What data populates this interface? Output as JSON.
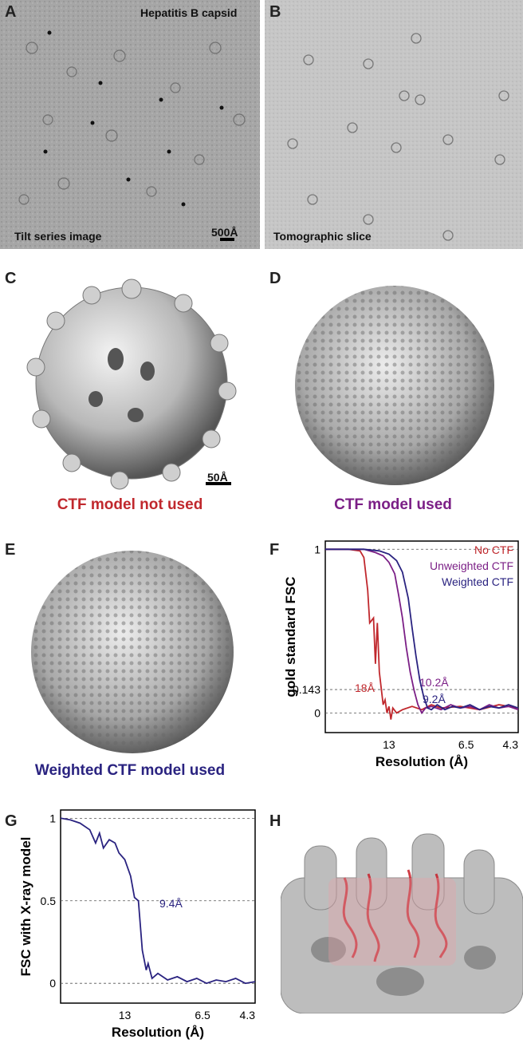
{
  "panels": {
    "A": {
      "label": "A",
      "title": "Hepatitis B capsid",
      "caption": "Tilt series image",
      "scalebar": "500Å"
    },
    "B": {
      "label": "B",
      "caption": "Tomographic slice"
    },
    "C": {
      "label": "C",
      "caption": "CTF model not used",
      "scalebar": "50Å",
      "caption_color": "#c0282d"
    },
    "D": {
      "label": "D",
      "caption": "CTF model used",
      "caption_color": "#7b1f86"
    },
    "E": {
      "label": "E",
      "caption": "Weighted CTF model used",
      "caption_color": "#2a2380"
    },
    "F": {
      "label": "F"
    },
    "G": {
      "label": "G"
    },
    "H": {
      "label": "H"
    }
  },
  "chart_data": [
    {
      "type": "line",
      "panel": "F",
      "ylabel": "gold standard FSC",
      "xlabel": "Resolution (Å)",
      "x_ticks": [
        "13",
        "6.5",
        "4.3"
      ],
      "y_ticks": [
        "1",
        "0.143",
        "0"
      ],
      "grid": "dashed horizontal at 1, 0.143, 0",
      "legend_position": "top-right",
      "series": [
        {
          "name": "No CTF",
          "color": "#c0282d",
          "annotation": "18Å",
          "x": [
            0,
            0.05,
            0.12,
            0.18,
            0.2,
            0.22,
            0.23,
            0.25,
            0.26,
            0.27,
            0.28,
            0.29,
            0.3,
            0.31,
            0.32,
            0.33,
            0.34,
            0.35,
            0.37,
            0.4,
            0.45,
            0.5,
            0.55,
            0.6,
            0.7,
            0.8,
            0.9,
            1.0
          ],
          "y": [
            1,
            1,
            1,
            0.99,
            0.95,
            0.75,
            0.55,
            0.58,
            0.3,
            0.55,
            0.25,
            0.15,
            0.05,
            0.08,
            0.0,
            0.04,
            -0.04,
            0.03,
            0.0,
            0.02,
            0.04,
            0.02,
            0.05,
            0.03,
            0.04,
            0.02,
            0.05,
            0.03
          ]
        },
        {
          "name": "Unweighted CTF",
          "color": "#7b1f86",
          "annotation": "10.2Å",
          "x": [
            0,
            0.1,
            0.2,
            0.26,
            0.3,
            0.33,
            0.36,
            0.38,
            0.4,
            0.42,
            0.44,
            0.46,
            0.48,
            0.5,
            0.52,
            0.55,
            0.6,
            0.65,
            0.7,
            0.75,
            0.8,
            0.85,
            0.9,
            0.95,
            1.0
          ],
          "y": [
            1,
            1,
            1,
            0.98,
            0.96,
            0.92,
            0.85,
            0.72,
            0.58,
            0.4,
            0.25,
            0.14,
            0.05,
            0.0,
            0.03,
            0.04,
            0.02,
            0.05,
            0.03,
            0.04,
            0.02,
            0.05,
            0.03,
            0.04,
            0.02
          ]
        },
        {
          "name": "Weighted CTF",
          "color": "#2a2380",
          "annotation": "9.2Å",
          "x": [
            0,
            0.1,
            0.2,
            0.28,
            0.33,
            0.37,
            0.4,
            0.43,
            0.45,
            0.47,
            0.49,
            0.51,
            0.53,
            0.55,
            0.58,
            0.62,
            0.66,
            0.7,
            0.75,
            0.8,
            0.85,
            0.9,
            0.95,
            1.0
          ],
          "y": [
            1,
            1,
            1,
            0.99,
            0.97,
            0.93,
            0.86,
            0.7,
            0.52,
            0.35,
            0.2,
            0.1,
            0.03,
            0.02,
            0.05,
            0.02,
            0.04,
            0.03,
            0.05,
            0.02,
            0.04,
            0.03,
            0.05,
            0.03
          ]
        }
      ]
    },
    {
      "type": "line",
      "panel": "G",
      "ylabel": "FSC with X-ray model",
      "xlabel": "Resolution (Å)",
      "x_ticks": [
        "13",
        "6.5",
        "4.3"
      ],
      "y_ticks": [
        "1",
        "0.5",
        "0"
      ],
      "grid": "dashed horizontal at 1, 0.5, 0",
      "series": [
        {
          "name": "",
          "color": "#2a2380",
          "annotation": "9.4Å",
          "x": [
            0,
            0.05,
            0.1,
            0.15,
            0.18,
            0.2,
            0.22,
            0.25,
            0.28,
            0.3,
            0.33,
            0.36,
            0.38,
            0.4,
            0.42,
            0.44,
            0.45,
            0.47,
            0.5,
            0.55,
            0.6,
            0.65,
            0.7,
            0.75,
            0.8,
            0.85,
            0.9,
            0.95,
            1.0
          ],
          "y": [
            1,
            0.99,
            0.97,
            0.93,
            0.85,
            0.91,
            0.82,
            0.87,
            0.85,
            0.79,
            0.75,
            0.65,
            0.52,
            0.5,
            0.2,
            0.08,
            0.12,
            0.03,
            0.06,
            0.02,
            0.04,
            0.01,
            0.03,
            0.0,
            0.02,
            0.01,
            0.03,
            0.0,
            0.01
          ]
        }
      ]
    }
  ]
}
